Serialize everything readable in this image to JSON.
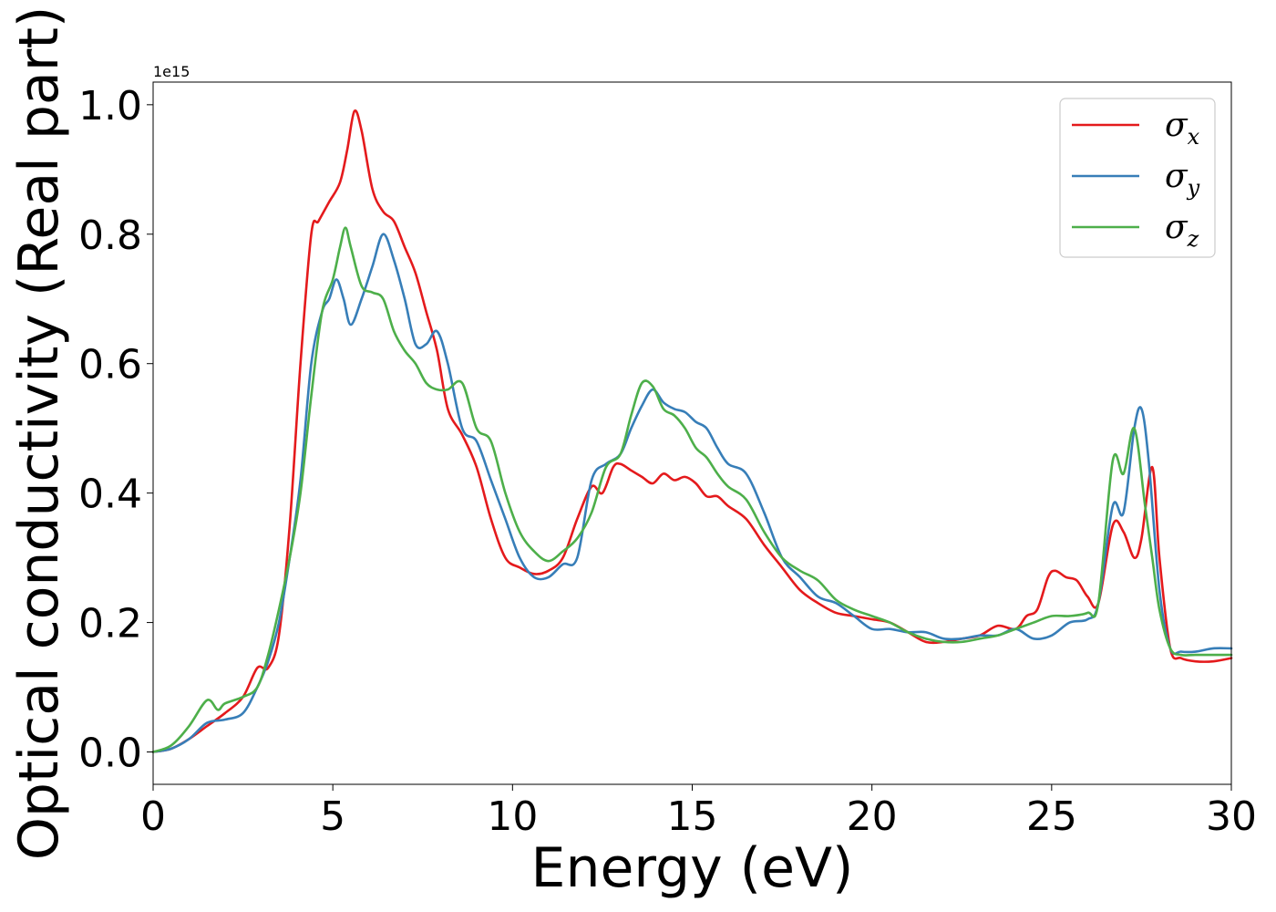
{
  "chart_data": {
    "type": "line",
    "title": "",
    "xlabel": "Energy (eV)",
    "ylabel": "Optical conductivity (Real part)",
    "y_offset_text": "1e15",
    "xlim": [
      0,
      30
    ],
    "ylim": [
      -0.05,
      1.035
    ],
    "xticks": [
      0,
      5,
      10,
      15,
      20,
      25,
      30
    ],
    "xtick_labels": [
      "0",
      "5",
      "10",
      "15",
      "20",
      "25",
      "30"
    ],
    "yticks": [
      0.0,
      0.2,
      0.4,
      0.6,
      0.8,
      1.0
    ],
    "ytick_labels": [
      "0.0",
      "0.2",
      "0.4",
      "0.6",
      "0.8",
      "1.0"
    ],
    "grid": false,
    "legend_position": "top-right",
    "series": [
      {
        "name": "σ",
        "subscript": "x",
        "color": "#e41a1c",
        "x": [
          0,
          0.5,
          1.0,
          1.5,
          2.0,
          2.5,
          2.9,
          3.2,
          3.5,
          3.8,
          4.1,
          4.4,
          4.6,
          4.9,
          5.2,
          5.4,
          5.6,
          5.8,
          6.1,
          6.4,
          6.7,
          7.0,
          7.3,
          7.6,
          7.9,
          8.2,
          8.6,
          9.0,
          9.4,
          9.8,
          10.2,
          10.6,
          11.0,
          11.4,
          11.8,
          12.2,
          12.5,
          12.8,
          13.0,
          13.3,
          13.6,
          13.9,
          14.2,
          14.5,
          14.8,
          15.1,
          15.4,
          15.7,
          16.0,
          16.5,
          17.0,
          17.5,
          18.0,
          18.5,
          19.0,
          19.5,
          20.0,
          20.5,
          21.0,
          21.5,
          22.0,
          22.5,
          23.0,
          23.5,
          24.0,
          24.3,
          24.6,
          24.9,
          25.1,
          25.4,
          25.7,
          26.0,
          26.3,
          26.7,
          27.0,
          27.3,
          27.5,
          27.8,
          28.0,
          28.3,
          28.6,
          29.0,
          29.5,
          30.0
        ],
        "values": [
          0.0,
          0.005,
          0.02,
          0.04,
          0.06,
          0.085,
          0.13,
          0.13,
          0.18,
          0.35,
          0.6,
          0.8,
          0.82,
          0.85,
          0.88,
          0.93,
          0.99,
          0.96,
          0.87,
          0.835,
          0.82,
          0.78,
          0.74,
          0.68,
          0.62,
          0.53,
          0.49,
          0.44,
          0.36,
          0.3,
          0.285,
          0.275,
          0.28,
          0.3,
          0.36,
          0.41,
          0.4,
          0.44,
          0.445,
          0.435,
          0.425,
          0.415,
          0.43,
          0.42,
          0.425,
          0.415,
          0.395,
          0.395,
          0.38,
          0.36,
          0.32,
          0.285,
          0.25,
          0.23,
          0.215,
          0.21,
          0.205,
          0.2,
          0.185,
          0.17,
          0.17,
          0.175,
          0.18,
          0.195,
          0.19,
          0.21,
          0.22,
          0.27,
          0.28,
          0.27,
          0.265,
          0.24,
          0.23,
          0.35,
          0.34,
          0.3,
          0.33,
          0.44,
          0.3,
          0.16,
          0.145,
          0.14,
          0.14,
          0.145
        ]
      },
      {
        "name": "σ",
        "subscript": "y",
        "color": "#377eb8",
        "x": [
          0,
          0.5,
          1.0,
          1.5,
          2.0,
          2.5,
          2.9,
          3.2,
          3.5,
          3.8,
          4.1,
          4.4,
          4.7,
          4.9,
          5.1,
          5.3,
          5.5,
          5.8,
          6.1,
          6.4,
          6.7,
          7.0,
          7.3,
          7.6,
          7.9,
          8.2,
          8.6,
          9.0,
          9.4,
          9.8,
          10.2,
          10.6,
          11.0,
          11.4,
          11.8,
          12.2,
          12.6,
          13.0,
          13.3,
          13.6,
          13.9,
          14.2,
          14.5,
          14.8,
          15.1,
          15.4,
          15.7,
          16.0,
          16.5,
          17.0,
          17.5,
          18.0,
          18.5,
          19.0,
          19.5,
          20.0,
          20.5,
          21.0,
          21.5,
          22.0,
          22.5,
          23.0,
          23.5,
          24.0,
          24.5,
          25.0,
          25.5,
          26.0,
          26.3,
          26.7,
          27.0,
          27.3,
          27.5,
          27.7,
          28.0,
          28.3,
          28.6,
          29.0,
          29.5,
          30.0
        ],
        "values": [
          0.0,
          0.005,
          0.02,
          0.045,
          0.05,
          0.06,
          0.1,
          0.14,
          0.2,
          0.3,
          0.42,
          0.6,
          0.68,
          0.7,
          0.73,
          0.7,
          0.66,
          0.7,
          0.75,
          0.8,
          0.76,
          0.7,
          0.63,
          0.63,
          0.65,
          0.6,
          0.5,
          0.48,
          0.42,
          0.36,
          0.3,
          0.27,
          0.27,
          0.29,
          0.3,
          0.42,
          0.445,
          0.46,
          0.5,
          0.535,
          0.56,
          0.54,
          0.53,
          0.525,
          0.51,
          0.5,
          0.47,
          0.445,
          0.43,
          0.37,
          0.3,
          0.27,
          0.24,
          0.23,
          0.21,
          0.19,
          0.19,
          0.185,
          0.185,
          0.175,
          0.175,
          0.18,
          0.18,
          0.19,
          0.175,
          0.18,
          0.2,
          0.205,
          0.23,
          0.38,
          0.37,
          0.5,
          0.53,
          0.45,
          0.25,
          0.16,
          0.155,
          0.155,
          0.16,
          0.16
        ]
      },
      {
        "name": "σ",
        "subscript": "z",
        "color": "#4daf4a",
        "x": [
          0,
          0.5,
          1.0,
          1.5,
          1.8,
          2.0,
          2.5,
          2.9,
          3.2,
          3.5,
          3.8,
          4.1,
          4.4,
          4.7,
          5.0,
          5.2,
          5.35,
          5.5,
          5.8,
          6.1,
          6.4,
          6.7,
          7.0,
          7.3,
          7.6,
          7.9,
          8.2,
          8.6,
          9.0,
          9.4,
          9.8,
          10.2,
          10.6,
          11.0,
          11.4,
          11.8,
          12.2,
          12.6,
          13.0,
          13.3,
          13.6,
          13.9,
          14.2,
          14.5,
          14.8,
          15.1,
          15.4,
          15.7,
          16.0,
          16.5,
          17.0,
          17.5,
          18.0,
          18.5,
          19.0,
          19.5,
          20.0,
          20.5,
          21.0,
          21.5,
          22.0,
          22.5,
          23.0,
          23.5,
          24.0,
          24.5,
          25.0,
          25.5,
          26.0,
          26.3,
          26.7,
          27.0,
          27.3,
          27.6,
          27.8,
          28.0,
          28.3,
          28.6,
          29.0,
          29.5,
          30.0
        ],
        "values": [
          0.0,
          0.01,
          0.04,
          0.08,
          0.065,
          0.075,
          0.085,
          0.1,
          0.15,
          0.22,
          0.3,
          0.4,
          0.55,
          0.68,
          0.73,
          0.78,
          0.81,
          0.78,
          0.72,
          0.71,
          0.7,
          0.65,
          0.62,
          0.6,
          0.57,
          0.56,
          0.56,
          0.57,
          0.5,
          0.48,
          0.4,
          0.34,
          0.31,
          0.295,
          0.31,
          0.33,
          0.37,
          0.44,
          0.46,
          0.52,
          0.57,
          0.565,
          0.53,
          0.52,
          0.5,
          0.47,
          0.455,
          0.43,
          0.41,
          0.39,
          0.34,
          0.3,
          0.28,
          0.265,
          0.235,
          0.22,
          0.21,
          0.2,
          0.185,
          0.175,
          0.17,
          0.17,
          0.175,
          0.18,
          0.19,
          0.2,
          0.21,
          0.21,
          0.215,
          0.23,
          0.45,
          0.43,
          0.5,
          0.38,
          0.3,
          0.22,
          0.16,
          0.15,
          0.15,
          0.15,
          0.15
        ]
      }
    ]
  }
}
